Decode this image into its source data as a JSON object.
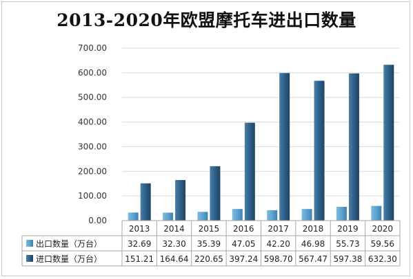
{
  "chart_data": {
    "type": "bar",
    "title": "2013-2020年欧盟摩托车进出口数量",
    "categories": [
      "2013",
      "2014",
      "2015",
      "2016",
      "2017",
      "2018",
      "2019",
      "2020"
    ],
    "series": [
      {
        "name": "出口数量（万台）",
        "color": "#5fa3cf",
        "values": [
          32.69,
          32.3,
          35.39,
          47.05,
          42.2,
          46.98,
          55.73,
          59.56
        ],
        "labels": [
          "32.69",
          "32.30",
          "35.39",
          "47.05",
          "42.20",
          "46.98",
          "55.73",
          "59.56"
        ]
      },
      {
        "name": "进口数量（万台）",
        "color": "#2e5f86",
        "values": [
          151.21,
          164.64,
          220.65,
          397.24,
          598.7,
          567.47,
          597.38,
          632.3
        ],
        "labels": [
          "151.21",
          "164.64",
          "220.65",
          "397.24",
          "598.70",
          "567.47",
          "597.38",
          "632.30"
        ]
      }
    ],
    "ylim": [
      0,
      700
    ],
    "yticks": [
      "0.00",
      "100.00",
      "200.00",
      "300.00",
      "400.00",
      "500.00",
      "600.00",
      "700.00"
    ],
    "grid": true,
    "legend": "data-table"
  }
}
